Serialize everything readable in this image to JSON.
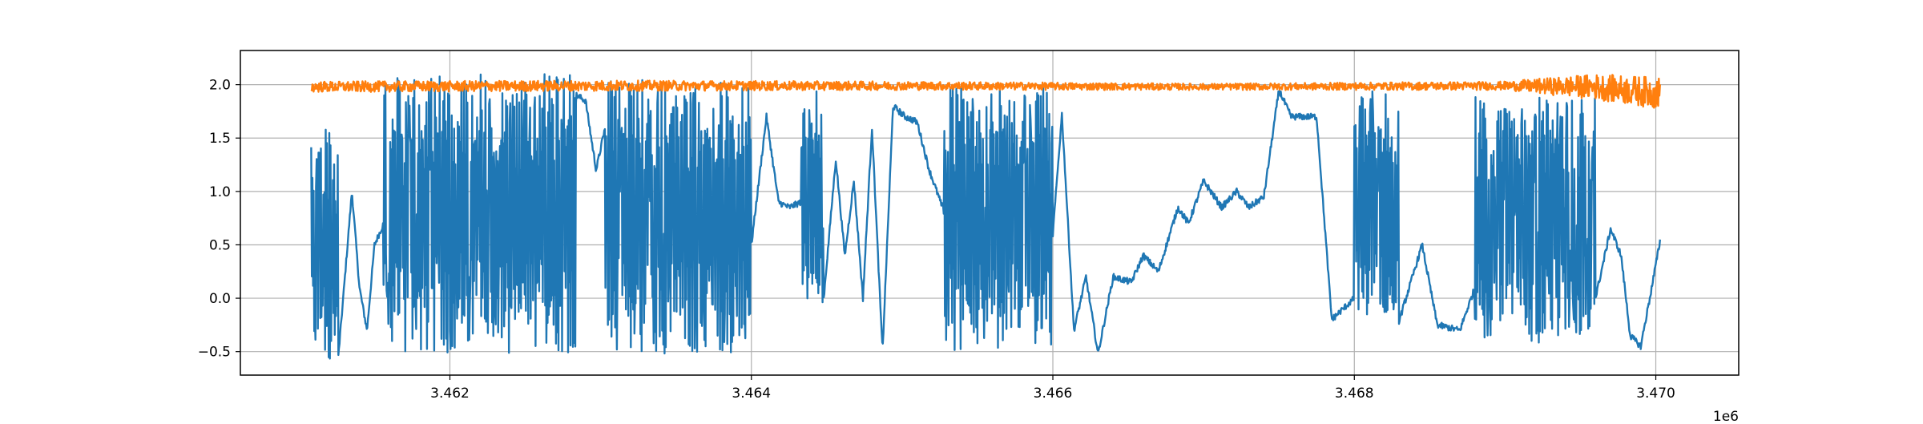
{
  "chart_data": {
    "type": "line",
    "title": "",
    "xlabel": "",
    "ylabel": "",
    "x_offset_text": "1e6",
    "xlim": [
      3.46061,
      3.47055
    ],
    "ylim": [
      -0.72,
      2.32
    ],
    "x_ticks": [
      3.462,
      3.464,
      3.466,
      3.468,
      3.47
    ],
    "x_tick_labels": [
      "3.462",
      "3.464",
      "3.466",
      "3.468",
      "3.470"
    ],
    "y_ticks": [
      -0.5,
      0.0,
      0.5,
      1.0,
      1.5,
      2.0
    ],
    "y_tick_labels": [
      "−0.5",
      "0.0",
      "0.5",
      "1.0",
      "1.5",
      "2.0"
    ],
    "grid": true,
    "legend": "none",
    "series": [
      {
        "color": "#1f77b4",
        "envelope": [
          {
            "x": [
              3.46108,
              3.46126
            ],
            "low": -0.57,
            "high": 1.65
          },
          {
            "x": [
              3.46156,
              3.46284
            ],
            "low": -0.52,
            "high": 2.1
          },
          {
            "x": [
              3.46303,
              3.464
            ],
            "low": -0.52,
            "high": 2.05
          },
          {
            "x": [
              3.46433,
              3.46448
            ],
            "low": -0.05,
            "high": 1.95
          },
          {
            "x": [
              3.46528,
              3.466
            ],
            "low": -0.5,
            "high": 2.0
          },
          {
            "x": [
              3.468,
              3.4683
            ],
            "low": -0.25,
            "high": 1.95
          },
          {
            "x": [
              3.4688,
              3.4696
            ],
            "low": -0.42,
            "high": 1.9
          },
          {
            "x": [
              3.4691,
              3.46935
            ],
            "low": -0.42,
            "high": 1.9
          }
        ],
        "x": [
          3.46108,
          3.46126,
          3.46135,
          3.4614,
          3.46145,
          3.4615,
          3.46156,
          3.4626,
          3.46284,
          3.4629,
          3.46297,
          3.46303,
          3.464,
          3.4641,
          3.46418,
          3.46425,
          3.46433,
          3.46448,
          3.46456,
          3.46462,
          3.46468,
          3.46474,
          3.4648,
          3.46487,
          3.46494,
          3.46502,
          3.4651,
          3.46518,
          3.46528,
          3.466,
          3.46606,
          3.46614,
          3.46622,
          3.4663,
          3.4664,
          3.46652,
          3.4666,
          3.4667,
          3.46683,
          3.4669,
          3.467,
          3.46712,
          3.46722,
          3.4673,
          3.4674,
          3.4675,
          3.46758,
          3.46768,
          3.46775,
          3.46785,
          3.468,
          3.4683,
          3.46845,
          3.46855,
          3.4687,
          3.4688,
          3.4696,
          3.4697,
          3.46977,
          3.46983,
          3.4699,
          3.46996,
          3.47003
        ],
        "y": [
          1.6,
          -0.55,
          1.0,
          0.1,
          -0.3,
          0.5,
          0.7,
          0.0,
          1.9,
          1.85,
          1.2,
          1.6,
          0.5,
          1.7,
          0.9,
          0.85,
          0.9,
          0.0,
          1.3,
          0.4,
          1.1,
          0.0,
          1.6,
          -0.5,
          1.8,
          1.7,
          1.65,
          1.2,
          0.8,
          0.6,
          1.72,
          -0.3,
          0.2,
          -0.52,
          0.2,
          0.15,
          0.4,
          0.25,
          0.85,
          0.7,
          1.1,
          0.85,
          1.0,
          0.85,
          0.95,
          1.95,
          1.7,
          1.7,
          1.7,
          -0.2,
          0.0,
          -0.2,
          0.5,
          -0.25,
          -0.3,
          0.1,
          0.0,
          0.65,
          0.4,
          -0.35,
          -0.45,
          0.0,
          0.55
        ]
      },
      {
        "color": "#ff7f0e",
        "x": [
          3.46108,
          3.463,
          3.465,
          3.467,
          3.469,
          3.4696,
          3.47003
        ],
        "y": [
          1.98,
          1.99,
          1.99,
          1.98,
          1.99,
          1.98,
          1.92
        ],
        "noise": [
          0.05,
          0.05,
          0.04,
          0.03,
          0.04,
          0.12,
          0.15
        ]
      }
    ]
  }
}
